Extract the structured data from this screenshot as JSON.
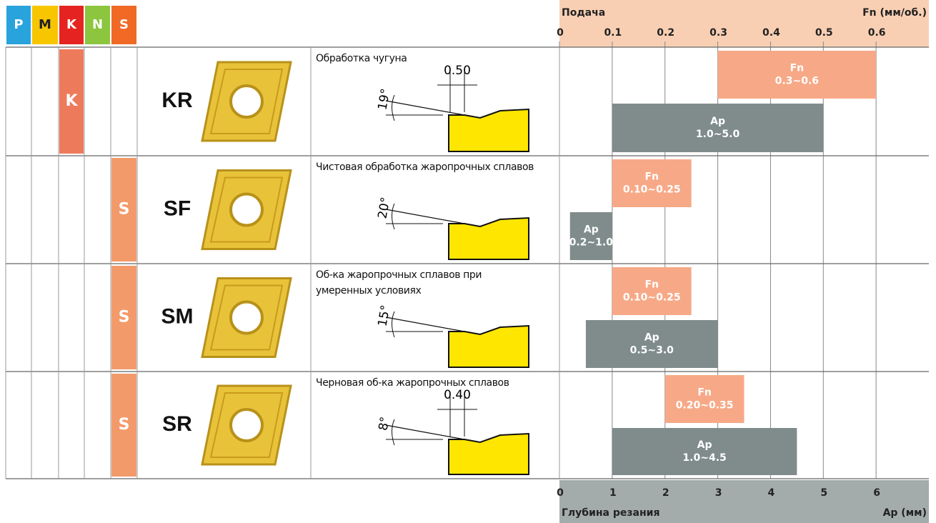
{
  "header": {
    "iso_groups": [
      {
        "label": "P",
        "color": "#29a3dc"
      },
      {
        "label": "M",
        "color": "#f7c600"
      },
      {
        "label": "K",
        "color": "#e52421"
      },
      {
        "label": "N",
        "color": "#8cc63f"
      },
      {
        "label": "S",
        "color": "#f06a26"
      }
    ],
    "feed_axis": {
      "title": "Подача",
      "unit": "Fn (мм/об.)",
      "xlim": [
        0,
        0.7
      ],
      "ticks": [
        0,
        0.1,
        0.2,
        0.3,
        0.4,
        0.5,
        0.6
      ]
    },
    "depth_axis": {
      "title": "Глубина резания",
      "unit": "Ap (мм)",
      "xlim": [
        0,
        7
      ],
      "ticks": [
        0,
        1,
        2,
        3,
        4,
        5,
        6
      ]
    }
  },
  "rows": [
    {
      "group": "K",
      "code": "KR",
      "description_lines": [
        "Обработка чугуна"
      ],
      "angle": "19°",
      "land": "0.50",
      "fn": {
        "label": "Fn",
        "range": [
          0.3,
          0.6
        ],
        "range_label": "0.3~0.6"
      },
      "ap": {
        "label": "Ap",
        "range": [
          1.0,
          5.0
        ],
        "range_label": "1.0~5.0"
      }
    },
    {
      "group": "S",
      "code": "SF",
      "description_lines": [
        "Чистовая обработка жаропрочных сплавов"
      ],
      "angle": "20°",
      "fn": {
        "label": "Fn",
        "range": [
          0.1,
          0.25
        ],
        "range_label": "0.10~0.25"
      },
      "ap": {
        "label": "Ap",
        "range": [
          0.2,
          1.0
        ],
        "range_label": "0.2~1.0"
      }
    },
    {
      "group": "S",
      "code": "SM",
      "description_lines": [
        "Об-ка жаропрочных сплавов при",
        "умеренных условиях"
      ],
      "angle": "15°",
      "fn": {
        "label": "Fn",
        "range": [
          0.1,
          0.25
        ],
        "range_label": "0.10~0.25"
      },
      "ap": {
        "label": "Ap",
        "range": [
          0.5,
          3.0
        ],
        "range_label": "0.5~3.0"
      }
    },
    {
      "group": "S",
      "code": "SR",
      "description_lines": [
        "Черновая об-ка жаропрочных сплавов"
      ],
      "angle": "8°",
      "land": "0.40",
      "fn": {
        "label": "Fn",
        "range": [
          0.2,
          0.35
        ],
        "range_label": "0.20~0.35"
      },
      "ap": {
        "label": "Ap",
        "range": [
          1.0,
          4.5
        ],
        "range_label": "1.0~4.5"
      }
    }
  ]
}
